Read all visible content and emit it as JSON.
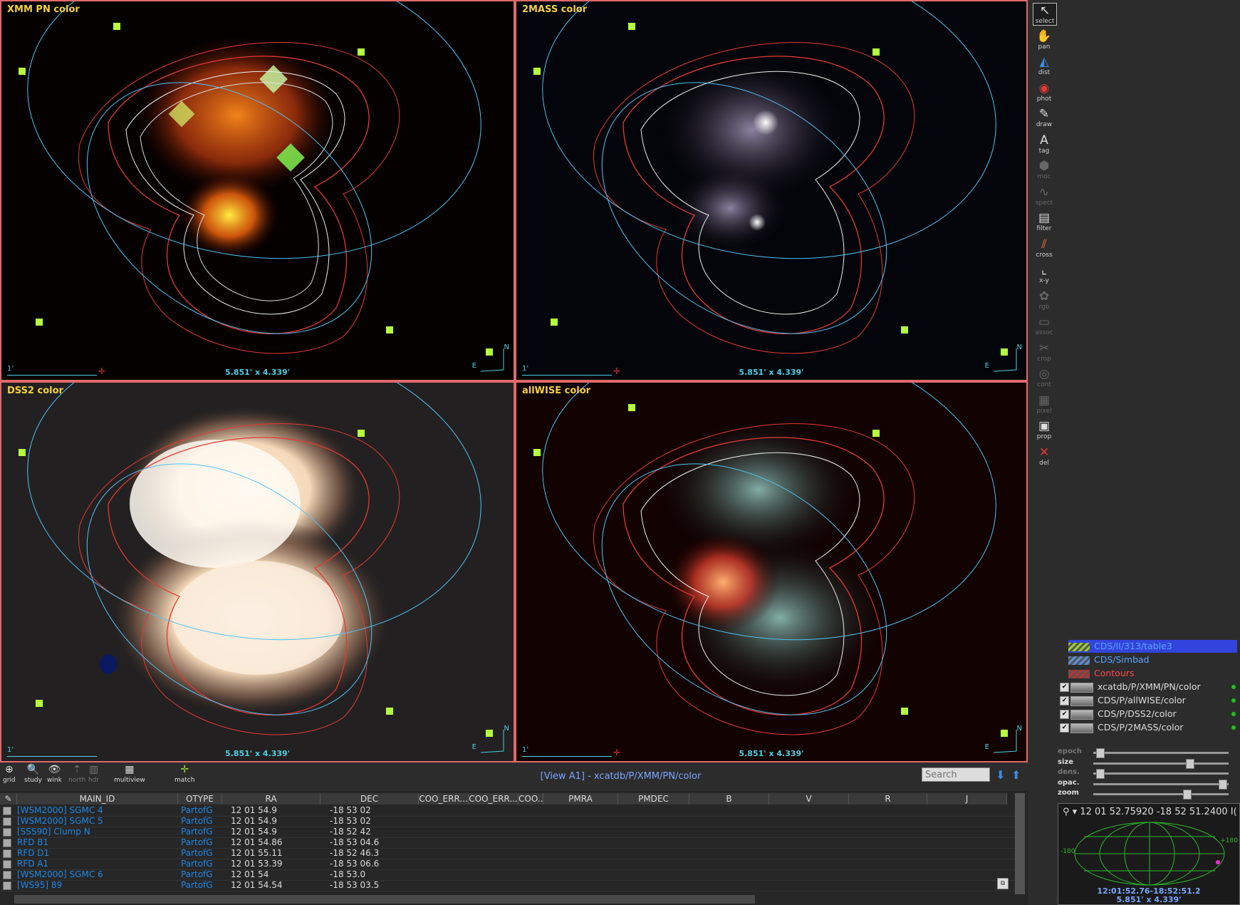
{
  "panels": [
    {
      "title": "XMM PN color",
      "scale": "1'",
      "fov": "5.851' x 4.339'",
      "north": "N",
      "east": "E"
    },
    {
      "title": "2MASS color",
      "scale": "1'",
      "fov": "5.851' x 4.339'",
      "north": "N",
      "east": "E"
    },
    {
      "title": "DSS2 color",
      "scale": "1'",
      "fov": "5.851' x 4.339'",
      "north": "N",
      "east": "E"
    },
    {
      "title": "allWISE color",
      "scale": "1'",
      "fov": "5.851' x 4.339'",
      "north": "N",
      "east": "E"
    }
  ],
  "toolbar": [
    {
      "label": "select",
      "icon": "select-arrow-icon",
      "enabled": true,
      "selected": true
    },
    {
      "label": "pan",
      "icon": "hand-icon",
      "enabled": true
    },
    {
      "label": "dist",
      "icon": "distance-icon",
      "enabled": true
    },
    {
      "label": "phot",
      "icon": "photometry-icon",
      "enabled": true
    },
    {
      "label": "draw",
      "icon": "pencil-icon",
      "enabled": true
    },
    {
      "label": "tag",
      "icon": "tag-icon",
      "enabled": true
    },
    {
      "label": "moc",
      "icon": "moc-icon",
      "enabled": false
    },
    {
      "label": "spect",
      "icon": "spectrum-icon",
      "enabled": false
    },
    {
      "label": "filter",
      "icon": "filter-icon",
      "enabled": true
    },
    {
      "label": "cross",
      "icon": "crossmatch-icon",
      "enabled": true
    },
    {
      "label": "x-y",
      "icon": "xy-plot-icon",
      "enabled": true
    },
    {
      "label": "rgb",
      "icon": "rgb-icon",
      "enabled": false
    },
    {
      "label": "assoc",
      "icon": "assoc-icon",
      "enabled": false
    },
    {
      "label": "crop",
      "icon": "scissors-icon",
      "enabled": false
    },
    {
      "label": "cont",
      "icon": "contour-icon",
      "enabled": false
    },
    {
      "label": "pixel",
      "icon": "pixel-icon",
      "enabled": false
    },
    {
      "label": "prop",
      "icon": "properties-icon",
      "enabled": true
    },
    {
      "label": "del",
      "icon": "delete-icon",
      "enabled": true
    }
  ],
  "layers": [
    {
      "name": "CDS/II/313/table3",
      "color": "#58a6ff",
      "type": "catalog",
      "selected": true
    },
    {
      "name": "CDS/Simbad",
      "color": "#58a6ff",
      "type": "catalog"
    },
    {
      "name": "Contours",
      "color": "#ff4a4a",
      "type": "contour"
    },
    {
      "name": "xcatdb/P/XMM/PN/color",
      "color": "#dddddd",
      "type": "image"
    },
    {
      "name": "CDS/P/allWISE/color",
      "color": "#dddddd",
      "type": "image"
    },
    {
      "name": "CDS/P/DSS2/color",
      "color": "#dddddd",
      "type": "image"
    },
    {
      "name": "CDS/P/2MASS/color",
      "color": "#dddddd",
      "type": "image"
    }
  ],
  "sliders": [
    {
      "label": "epoch",
      "enabled": false,
      "value": 0.02
    },
    {
      "label": "size",
      "enabled": true,
      "value": 0.72
    },
    {
      "label": "dens.",
      "enabled": false,
      "value": 0.02
    },
    {
      "label": "opac.",
      "enabled": true,
      "value": 0.98
    },
    {
      "label": "zoom",
      "enabled": true,
      "value": 0.7
    }
  ],
  "bottom_tools": [
    {
      "label": "grid",
      "icon": "grid-icon",
      "enabled": true
    },
    {
      "label": "study",
      "icon": "magnifier-icon",
      "enabled": true
    },
    {
      "label": "wink",
      "icon": "eye-icon",
      "enabled": true
    },
    {
      "label": "north",
      "icon": "north-icon",
      "enabled": false
    },
    {
      "label": "hdr",
      "icon": "hdr-icon",
      "enabled": false
    },
    {
      "label": "multiview",
      "icon": "multiview-icon",
      "enabled": true
    },
    {
      "label": "match",
      "icon": "match-icon",
      "enabled": true
    }
  ],
  "view_label": "[View A1] - xcatdb/P/XMM/PN/color",
  "search_placeholder": "Search",
  "table": {
    "columns": [
      "MAIN_ID",
      "OTYPE",
      "RA",
      "DEC",
      "COO_ERR...",
      "COO_ERR...",
      "COO...",
      "PMRA",
      "PMDEC",
      "B",
      "V",
      "R",
      "J"
    ],
    "rows": [
      [
        "[WSM2000] SGMC 4",
        "PartofG",
        "12 01 54.9",
        "-18 53 02"
      ],
      [
        "[WSM2000] SGMC 5",
        "PartofG",
        "12 01 54.9",
        "-18 53 02"
      ],
      [
        "[SSS90] Clump N",
        "PartofG",
        "12 01 54.9",
        "-18 52 42"
      ],
      [
        "RFD B1",
        "PartofG",
        "12 01 54.86",
        "-18 53 04.6"
      ],
      [
        "RFD D1",
        "PartofG",
        "12 01 55.11",
        "-18 52 46.3"
      ],
      [
        "RFD A1",
        "PartofG",
        "12 01 53.39",
        "-18 53 06.6"
      ],
      [
        "[WSM2000] SGMC 6",
        "PartofG",
        "12 01 54",
        "-18 53.0"
      ],
      [
        "[WS95] 89",
        "PartofG",
        "12 01 54.54",
        "-18 53 03.5"
      ]
    ]
  },
  "navigator": {
    "coord": "12 01 52.75920 -18 52 51.2400 I(",
    "lon_left": "-180",
    "lon_right": "+180",
    "bottom_coord": "12:01:52.76-18:52:51.2",
    "bottom_fov": "5.851' x 4.339'"
  }
}
